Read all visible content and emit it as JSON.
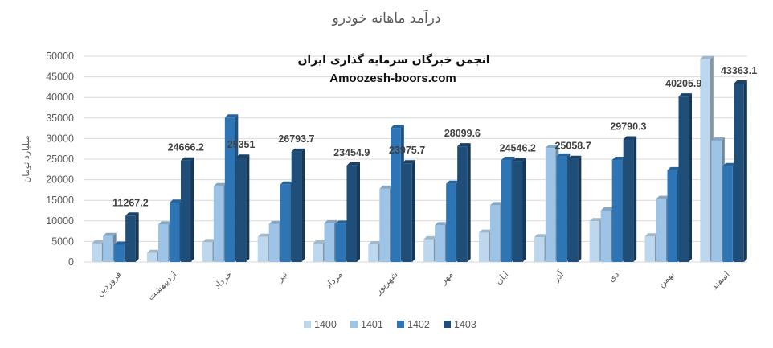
{
  "chart_data": {
    "type": "bar",
    "title": "درآمد ماهانه خودرو",
    "ylabel": "میلیارد تومان",
    "xlabel": "",
    "ylim": [
      0,
      50000
    ],
    "yticks": [
      0,
      5000,
      10000,
      15000,
      20000,
      25000,
      30000,
      35000,
      40000,
      45000,
      50000
    ],
    "grid": true,
    "legend_position": "bottom",
    "categories": [
      "فروردین",
      "اردیبهشت",
      "خرداد",
      "تیر",
      "مرداد",
      "شهریور",
      "مهر",
      "ابان",
      "آذر",
      "دی",
      "بهمن",
      "اسفند"
    ],
    "series": [
      {
        "name": "1400",
        "color": "#bdd7ee",
        "values": [
          4500,
          2200,
          4800,
          6100,
          4500,
          4300,
          5500,
          7100,
          6000,
          9900,
          6200,
          49300
        ]
      },
      {
        "name": "1401",
        "color": "#9dc3e6",
        "values": [
          6300,
          9100,
          18400,
          9200,
          9400,
          17800,
          8900,
          13800,
          27700,
          12500,
          15300,
          29500
        ]
      },
      {
        "name": "1402",
        "color": "#2e75b6",
        "values": [
          4200,
          14400,
          35100,
          18800,
          9300,
          32600,
          19000,
          24800,
          25600,
          24800,
          22300,
          23300
        ]
      },
      {
        "name": "1403",
        "color": "#1f4e79",
        "values": [
          11267.2,
          24666.2,
          25351,
          26793.7,
          23454.9,
          23975.7,
          28099.6,
          24546.2,
          25058.7,
          29790.3,
          40205.9,
          43363.1
        ]
      }
    ],
    "data_labels": {
      "series": "1403",
      "texts": [
        "11267.2",
        "24666.2",
        "25351",
        "26793.7",
        "23454.9",
        "23975.7",
        "28099.6",
        "24546.2",
        "25058.7",
        "29790.3",
        "40205.9",
        "43363.1"
      ]
    }
  },
  "watermark": {
    "line1": "انجمن خبرگان سرمایه گذاری ایران",
    "line2": "Amoozesh-boors.com"
  }
}
